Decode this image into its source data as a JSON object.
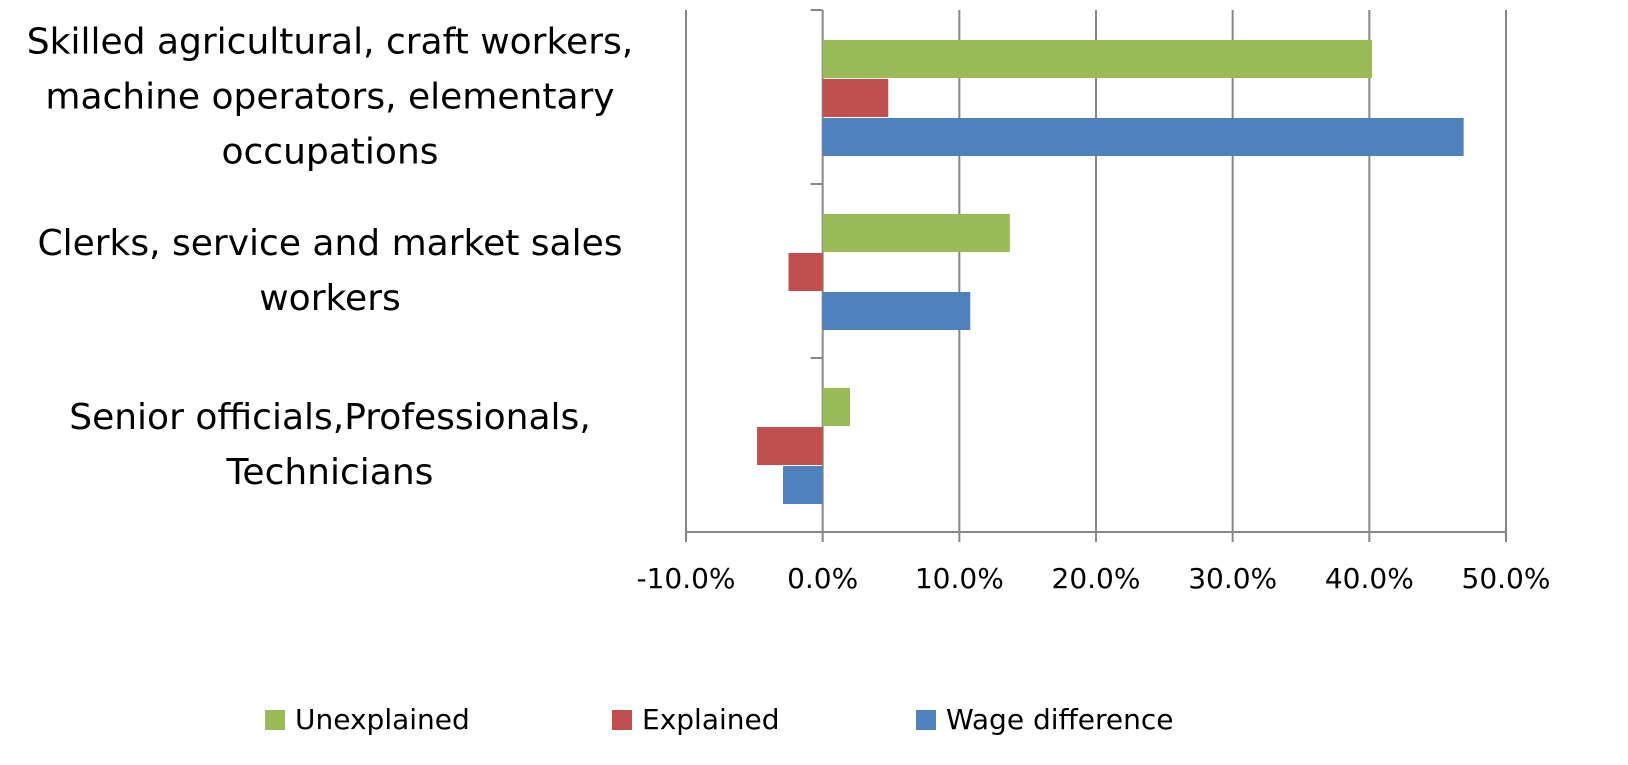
{
  "chart_data": {
    "type": "hbar",
    "categories": [
      "Skilled agricultural, craft workers, machine operators, elementary occupations",
      "Clerks, service and market sales workers",
      "Senior officials,Professionals, Technicians"
    ],
    "series": [
      {
        "name": "Unexplained",
        "color": "#9bbb59",
        "values": [
          40.2,
          13.7,
          2.0
        ]
      },
      {
        "name": "Explained",
        "color": "#c0504d",
        "values": [
          4.8,
          -2.5,
          -4.8
        ]
      },
      {
        "name": "Wage difference",
        "color": "#4f81bd",
        "values": [
          46.9,
          10.8,
          -2.9
        ]
      }
    ],
    "xlim": [
      -10,
      50
    ],
    "xticks": [
      {
        "value": -10,
        "label": "-10.0%"
      },
      {
        "value": 0,
        "label": "0.0%"
      },
      {
        "value": 10,
        "label": "10.0%"
      },
      {
        "value": 20,
        "label": "20.0%"
      },
      {
        "value": 30,
        "label": "30.0%"
      },
      {
        "value": 40,
        "label": "40.0%"
      },
      {
        "value": 50,
        "label": "50.0%"
      }
    ],
    "grid": true,
    "legend": "bottom"
  }
}
